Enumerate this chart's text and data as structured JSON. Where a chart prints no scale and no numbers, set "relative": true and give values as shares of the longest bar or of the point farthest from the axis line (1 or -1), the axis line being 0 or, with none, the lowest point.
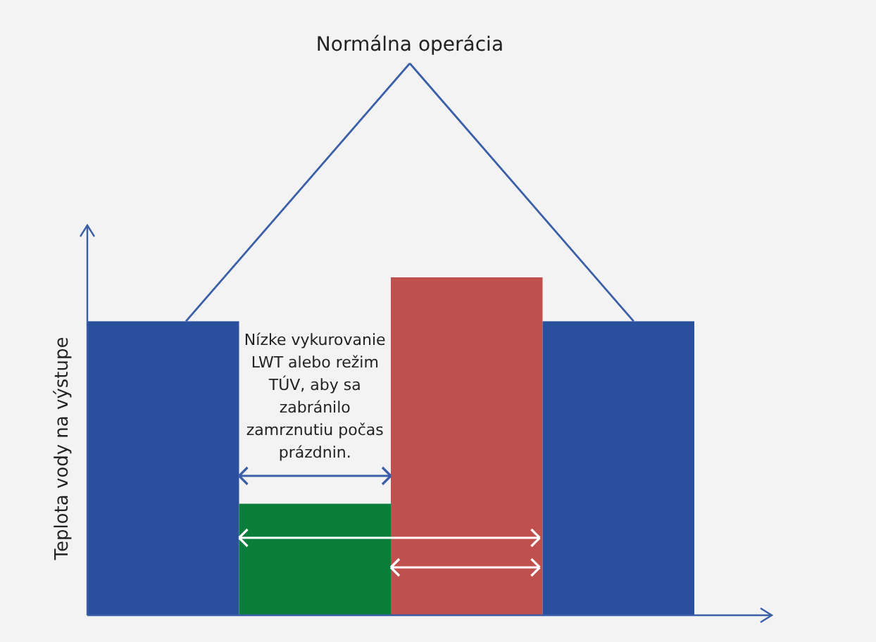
{
  "chart_data": {
    "type": "bar",
    "relative": true,
    "ylabel": "Teplota vody na výstupe",
    "categories": [
      null,
      null,
      null,
      null
    ],
    "values": [
      0.87,
      0.33,
      1,
      0.87
    ],
    "colors": [
      "#2a4f9c",
      "#0b7d3b",
      "#c0504d",
      "#2a4f9c"
    ],
    "annotations": [
      "Normálna operácia",
      "Nízke vykurovanie LWT alebo režim TÚV, aby sa zabránilo zamrznutiu počas prázdnin."
    ]
  }
}
